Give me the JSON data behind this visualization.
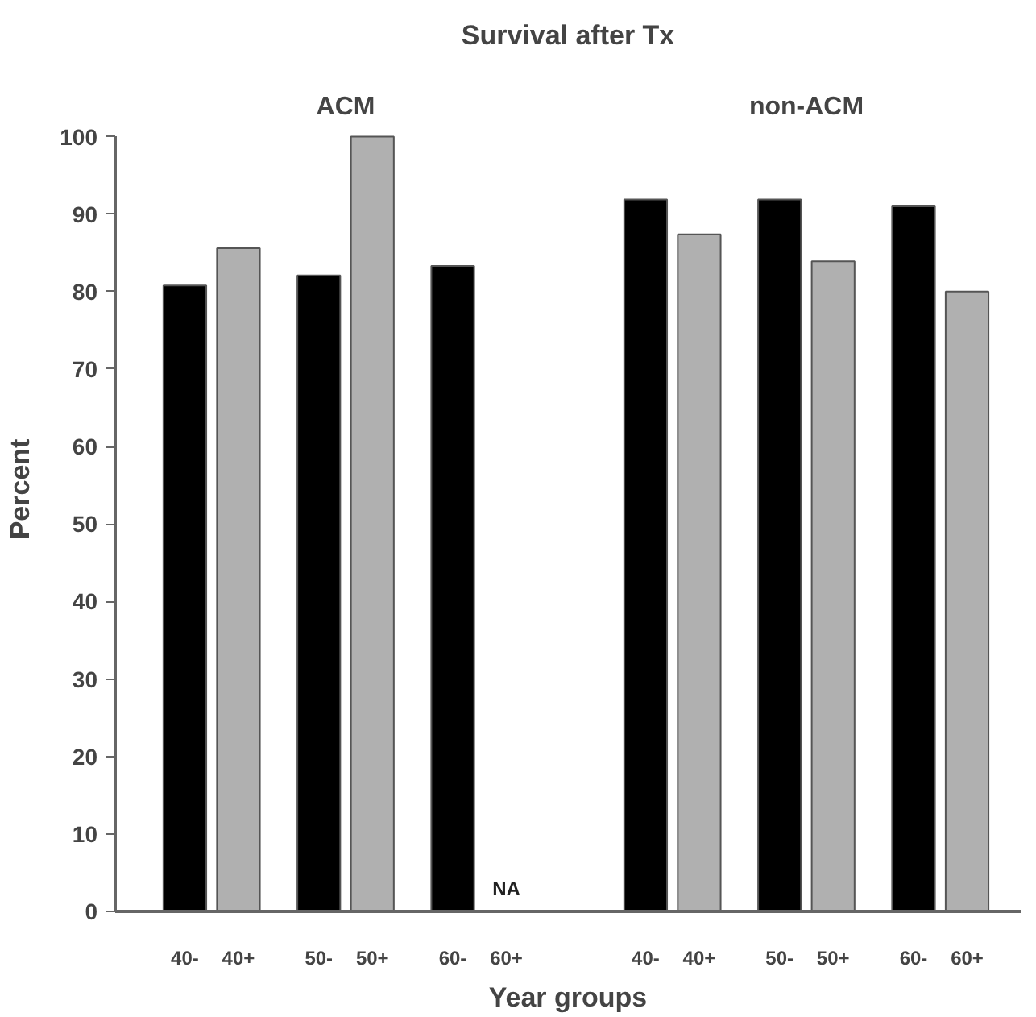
{
  "chart_data": {
    "type": "bar",
    "title": "Survival after Tx",
    "xlabel": "Year groups",
    "ylabel": "Percent",
    "categories": [
      "40-",
      "40+",
      "50-",
      "50+",
      "60-",
      "60+",
      "40-",
      "40+",
      "50-",
      "50+",
      "60-",
      "60+"
    ],
    "values": [
      80.8,
      85.6,
      82.1,
      100,
      83.3,
      null,
      91.9,
      87.4,
      91.9,
      83.9,
      91.0,
      80.0
    ],
    "colors": [
      "#000000",
      "#b0b0b0",
      "#000000",
      "#b0b0b0",
      "#000000",
      "#b0b0b0",
      "#000000",
      "#b0b0b0",
      "#000000",
      "#b0b0b0",
      "#000000",
      "#b0b0b0"
    ],
    "value_labels": [
      null,
      null,
      null,
      null,
      null,
      "NA",
      null,
      null,
      null,
      null,
      null,
      null
    ],
    "annotations": [
      "ACM",
      "non-ACM"
    ],
    "ylim": [
      0,
      100
    ],
    "yticks": [
      0,
      10,
      20,
      30,
      40,
      50,
      60,
      70,
      80,
      90,
      100
    ],
    "grid": false
  }
}
